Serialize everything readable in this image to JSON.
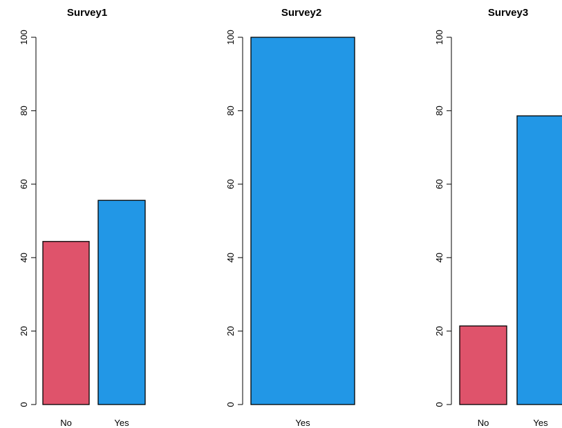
{
  "chart_data": [
    {
      "type": "bar",
      "title": "Survey1",
      "categories": [
        "No",
        "Yes"
      ],
      "values": [
        44.4,
        55.6
      ],
      "colors": [
        "#DF536B",
        "#2297E6"
      ],
      "ylim": [
        0,
        100
      ],
      "yticks": [
        "0",
        "20",
        "40",
        "60",
        "80",
        "100"
      ]
    },
    {
      "type": "bar",
      "title": "Survey2",
      "categories": [
        "Yes"
      ],
      "values": [
        100
      ],
      "colors": [
        "#2297E6"
      ],
      "ylim": [
        0,
        100
      ],
      "yticks": [
        "0",
        "20",
        "40",
        "60",
        "80",
        "100"
      ]
    },
    {
      "type": "bar",
      "title": "Survey3",
      "categories": [
        "No",
        "Yes"
      ],
      "values": [
        21.4,
        78.6
      ],
      "colors": [
        "#DF536B",
        "#2297E6"
      ],
      "ylim": [
        0,
        100
      ],
      "yticks": [
        "0",
        "20",
        "40",
        "60",
        "80",
        "100"
      ]
    }
  ]
}
